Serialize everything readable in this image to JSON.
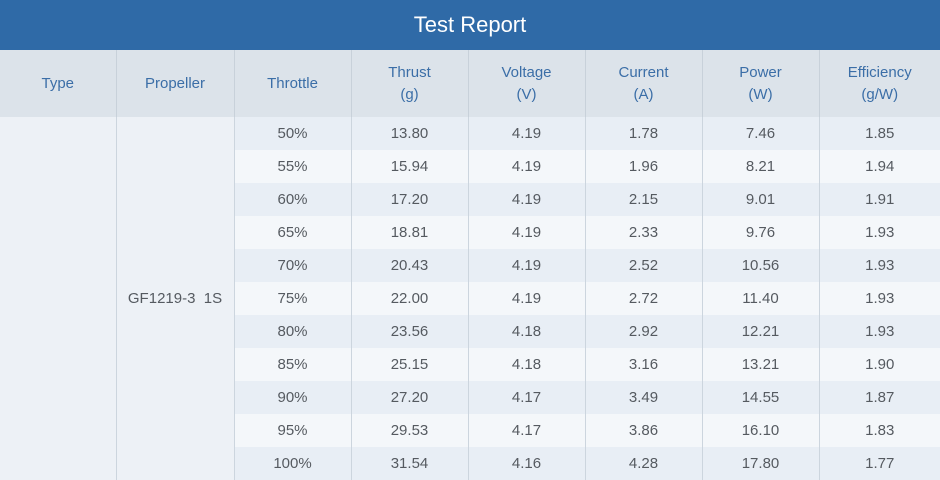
{
  "title": "Test Report",
  "headers": [
    {
      "label": "Type",
      "unit": ""
    },
    {
      "label": "Propeller",
      "unit": ""
    },
    {
      "label": "Throttle",
      "unit": ""
    },
    {
      "label": "Thrust",
      "unit": "(g)"
    },
    {
      "label": "Voltage",
      "unit": "(V)"
    },
    {
      "label": "Current",
      "unit": "(A)"
    },
    {
      "label": "Power",
      "unit": "(W)"
    },
    {
      "label": "Efficiency",
      "unit": "(g/W)"
    }
  ],
  "type_value": "",
  "propeller_value": "GF1219-3  1S",
  "rows": [
    {
      "throttle": "50%",
      "thrust": "13.80",
      "voltage": "4.19",
      "current": "1.78",
      "power": "7.46",
      "efficiency": "1.85"
    },
    {
      "throttle": "55%",
      "thrust": "15.94",
      "voltage": "4.19",
      "current": "1.96",
      "power": "8.21",
      "efficiency": "1.94"
    },
    {
      "throttle": "60%",
      "thrust": "17.20",
      "voltage": "4.19",
      "current": "2.15",
      "power": "9.01",
      "efficiency": "1.91"
    },
    {
      "throttle": "65%",
      "thrust": "18.81",
      "voltage": "4.19",
      "current": "2.33",
      "power": "9.76",
      "efficiency": "1.93"
    },
    {
      "throttle": "70%",
      "thrust": "20.43",
      "voltage": "4.19",
      "current": "2.52",
      "power": "10.56",
      "efficiency": "1.93"
    },
    {
      "throttle": "75%",
      "thrust": "22.00",
      "voltage": "4.19",
      "current": "2.72",
      "power": "11.40",
      "efficiency": "1.93"
    },
    {
      "throttle": "80%",
      "thrust": "23.56",
      "voltage": "4.18",
      "current": "2.92",
      "power": "12.21",
      "efficiency": "1.93"
    },
    {
      "throttle": "85%",
      "thrust": "25.15",
      "voltage": "4.18",
      "current": "3.16",
      "power": "13.21",
      "efficiency": "1.90"
    },
    {
      "throttle": "90%",
      "thrust": "27.20",
      "voltage": "4.17",
      "current": "3.49",
      "power": "14.55",
      "efficiency": "1.87"
    },
    {
      "throttle": "95%",
      "thrust": "29.53",
      "voltage": "4.17",
      "current": "3.86",
      "power": "16.10",
      "efficiency": "1.83"
    },
    {
      "throttle": "100%",
      "thrust": "31.54",
      "voltage": "4.16",
      "current": "4.28",
      "power": "17.80",
      "efficiency": "1.77"
    }
  ],
  "colors": {
    "title_bar": "#2f6aa7",
    "header_bg": "#dce3ea",
    "header_text": "#3b6ea7",
    "row_odd": "#e8eef5",
    "row_even": "#f4f7fa"
  }
}
